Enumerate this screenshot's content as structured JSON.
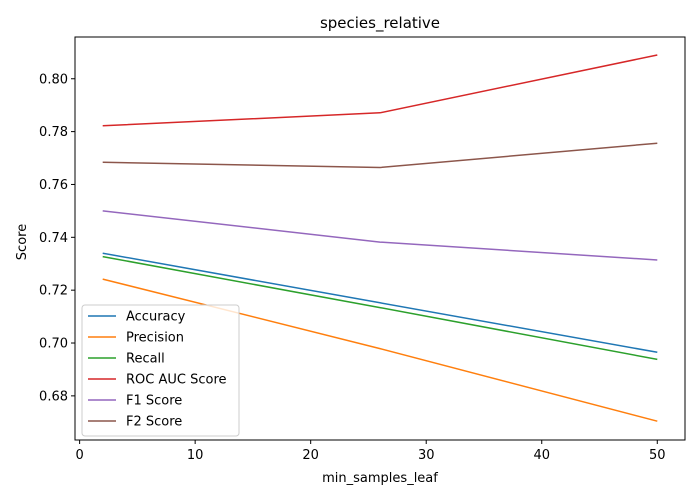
{
  "chart_data": {
    "type": "line",
    "title": "species_relative",
    "xlabel": "min_samples_leaf",
    "ylabel": "Score",
    "x": [
      2,
      26,
      50
    ],
    "xlim": [
      -0.4,
      52.4
    ],
    "ylim": [
      0.6633,
      0.8158
    ],
    "xticks": [
      0,
      10,
      20,
      30,
      40,
      50
    ],
    "yticks": [
      0.68,
      0.7,
      0.72,
      0.74,
      0.76,
      0.78,
      0.8
    ],
    "ytick_labels": [
      "0.68",
      "0.70",
      "0.72",
      "0.74",
      "0.76",
      "0.78",
      "0.80"
    ],
    "grid": false,
    "legend_position": "lower-left",
    "series": [
      {
        "name": "Accuracy",
        "color": "#1f77b4",
        "values": [
          0.734,
          0.7152,
          0.6965
        ]
      },
      {
        "name": "Precision",
        "color": "#ff7f0e",
        "values": [
          0.7242,
          0.6979,
          0.6704
        ]
      },
      {
        "name": "Recall",
        "color": "#2ca02c",
        "values": [
          0.7327,
          0.7134,
          0.6938
        ]
      },
      {
        "name": "ROC AUC Score",
        "color": "#d62728",
        "values": [
          0.7822,
          0.7871,
          0.809
        ]
      },
      {
        "name": "F1 Score",
        "color": "#9467bd",
        "values": [
          0.75,
          0.7382,
          0.7314
        ]
      },
      {
        "name": "F2 Score",
        "color": "#8c564b",
        "values": [
          0.7684,
          0.7664,
          0.7756
        ]
      }
    ]
  }
}
